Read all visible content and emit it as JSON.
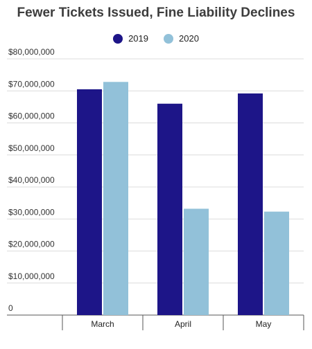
{
  "chart_data": {
    "type": "bar",
    "title": "Fewer Tickets Issued, Fine Liability Declines",
    "categories": [
      "March",
      "April",
      "May"
    ],
    "series": [
      {
        "name": "2019",
        "color": "#1d1588",
        "values": [
          70500000,
          66000000,
          69200000
        ]
      },
      {
        "name": "2020",
        "color": "#92c1d9",
        "values": [
          72800000,
          33200000,
          32300000
        ]
      }
    ],
    "ylim": [
      0,
      80000000
    ],
    "yticks": [
      {
        "value": 0,
        "label": "0"
      },
      {
        "value": 10000000,
        "label": "$10,000,000"
      },
      {
        "value": 20000000,
        "label": "$20,000,000"
      },
      {
        "value": 30000000,
        "label": "$30,000,000"
      },
      {
        "value": 40000000,
        "label": "$40,000,000"
      },
      {
        "value": 50000000,
        "label": "$50,000,000"
      },
      {
        "value": 60000000,
        "label": "$60,000,000"
      },
      {
        "value": 70000000,
        "label": "$70,000,000"
      },
      {
        "value": 80000000,
        "label": "$80,000,000"
      }
    ],
    "grid": true,
    "legend": "top-center"
  }
}
